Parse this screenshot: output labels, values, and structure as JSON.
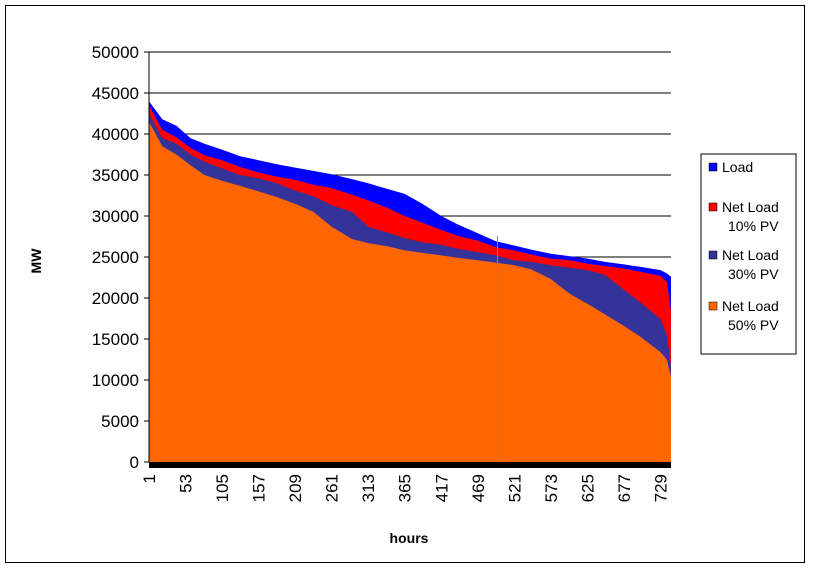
{
  "chart_data": {
    "type": "area",
    "xlabel": "hours",
    "ylabel": "MW",
    "ylim": [
      0,
      50000
    ],
    "yticks": [
      "0",
      "5000",
      "10000",
      "15000",
      "20000",
      "25000",
      "30000",
      "35000",
      "40000",
      "45000",
      "50000"
    ],
    "xlim": [
      1,
      744
    ],
    "xticks": [
      "1",
      "53",
      "105",
      "157",
      "209",
      "261",
      "313",
      "365",
      "417",
      "469",
      "521",
      "573",
      "625",
      "677",
      "729"
    ],
    "grid": "horizontal",
    "legend_position": "right",
    "x": [
      1,
      20,
      40,
      60,
      80,
      105,
      130,
      157,
      183,
      209,
      235,
      261,
      290,
      313,
      340,
      365,
      390,
      417,
      440,
      469,
      495,
      521,
      545,
      573,
      600,
      625,
      650,
      677,
      700,
      729,
      738,
      744
    ],
    "series": [
      {
        "name": "Load",
        "color": "#0000FF",
        "values": [
          44000,
          41800,
          41000,
          39500,
          38800,
          38100,
          37300,
          36800,
          36300,
          35900,
          35500,
          35100,
          34500,
          34000,
          33300,
          32700,
          31500,
          30000,
          29000,
          27900,
          26900,
          26400,
          25900,
          25400,
          25100,
          24800,
          24400,
          24100,
          23800,
          23400,
          23000,
          22600
        ]
      },
      {
        "name": "Net Load\n10% PV",
        "color": "#FF0000",
        "values": [
          43500,
          40500,
          39600,
          38300,
          37400,
          36800,
          36000,
          35300,
          34800,
          34400,
          33800,
          33400,
          32600,
          31900,
          31000,
          30000,
          29200,
          28300,
          27600,
          27000,
          26200,
          25800,
          25300,
          24800,
          24600,
          24200,
          23900,
          23600,
          23200,
          22700,
          22000,
          18400
        ]
      },
      {
        "name": "Net Load\n30% PV",
        "color": "#333399",
        "values": [
          42500,
          39500,
          38800,
          37500,
          36600,
          35800,
          35000,
          34600,
          34000,
          33100,
          32400,
          31300,
          30500,
          28700,
          28000,
          27300,
          26800,
          26500,
          26000,
          25600,
          25200,
          24600,
          24400,
          24000,
          23700,
          23400,
          22800,
          21000,
          19500,
          17400,
          15500,
          11700
        ]
      },
      {
        "name": "Net Load\n50% PV",
        "color": "#FF6600",
        "values": [
          41500,
          38500,
          37500,
          36200,
          35000,
          34300,
          33700,
          33000,
          32300,
          31500,
          30500,
          28700,
          27200,
          26700,
          26300,
          25800,
          25500,
          25200,
          24900,
          24600,
          24300,
          24000,
          23500,
          22300,
          20500,
          19300,
          18000,
          16600,
          15300,
          13400,
          12500,
          10400
        ]
      }
    ],
    "marker_line_x": 497
  }
}
